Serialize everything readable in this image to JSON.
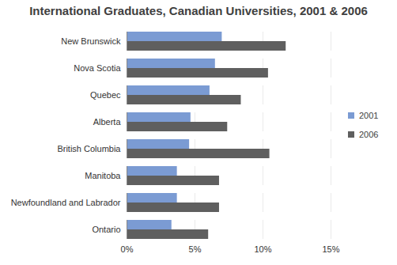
{
  "chart_data": {
    "type": "bar",
    "orientation": "horizontal",
    "title": "International Graduates, Canadian Universities, 2001 & 2006",
    "categories": [
      "New Brunswick",
      "Nova Scotia",
      "Quebec",
      "Alberta",
      "British Columbia",
      "Manitoba",
      "Newfoundland and Labrador",
      "Ontario"
    ],
    "series": [
      {
        "name": "2001",
        "color": "#7b9bd3",
        "values": [
          7.0,
          6.5,
          6.1,
          4.7,
          4.6,
          3.7,
          3.7,
          3.3
        ]
      },
      {
        "name": "2006",
        "color": "#5f5f5f",
        "values": [
          11.7,
          10.4,
          8.4,
          7.4,
          10.5,
          6.8,
          6.8,
          6.0
        ]
      }
    ],
    "xlim": [
      0,
      15
    ],
    "xticks": [
      {
        "value": 0,
        "label": "0%"
      },
      {
        "value": 5,
        "label": "5%"
      },
      {
        "value": 10,
        "label": "10%"
      },
      {
        "value": 15,
        "label": "15%"
      }
    ],
    "grid": true,
    "legend": "right"
  }
}
